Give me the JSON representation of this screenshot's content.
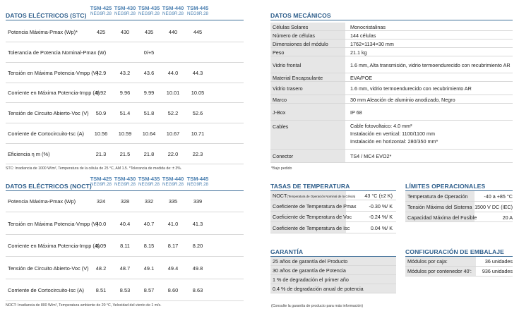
{
  "columns": [
    {
      "model": "TSM-425",
      "sub": "NEG9R.28"
    },
    {
      "model": "TSM-430",
      "sub": "NEG9R.28"
    },
    {
      "model": "TSM-435",
      "sub": "NEG9R.28"
    },
    {
      "model": "TSM-440",
      "sub": "NEG9R.28"
    },
    {
      "model": "TSM-445",
      "sub": "NEG9R.28"
    }
  ],
  "stc": {
    "title": "DATOS ELÉCTRICOS (STC)",
    "rows": [
      {
        "label": "Potencia Máxima-Pmax (Wp)*",
        "values": [
          "425",
          "430",
          "435",
          "440",
          "445"
        ]
      },
      {
        "label": "Tolerancia de Potencia Nominal-Pmax (W)",
        "span": "0/+5"
      },
      {
        "label": "Tensión en Máxima Potencia-Vmpp (V)",
        "values": [
          "42.9",
          "43.2",
          "43.6",
          "44.0",
          "44.3"
        ]
      },
      {
        "label": "Corriente en Máxima Potencia-Impp (A)",
        "values": [
          "9.92",
          "9.96",
          "9.99",
          "10.01",
          "10.05"
        ]
      },
      {
        "label": "Tensión de Circuito Abierto-Voc (V)",
        "values": [
          "50.9",
          "51.4",
          "51.8",
          "52.2",
          "52.6"
        ]
      },
      {
        "label": "Corriente de Cortocircuito-Isc (A)",
        "values": [
          "10.56",
          "10.59",
          "10.64",
          "10.67",
          "10.71"
        ]
      },
      {
        "label": "Eficiencia η m (%)",
        "values": [
          "21.3",
          "21.5",
          "21.8",
          "22.0",
          "22.3"
        ]
      }
    ],
    "note": "STC: Irradiancia de 1000 W/m², Temperatura de la célula de 25 °C, AM 1.5.    *Tolerancia de medida de: ± 3%."
  },
  "noct": {
    "title": "DATOS ELÉCTRICOS (NOCT)",
    "rows": [
      {
        "label": "Potencia Máxima-Pmax (Wp)",
        "values": [
          "324",
          "328",
          "332",
          "335",
          "339"
        ]
      },
      {
        "label": "Tensión en Máxima Potencia-Vmpp (V)",
        "values": [
          "40.0",
          "40.4",
          "40.7",
          "41.0",
          "41.3"
        ]
      },
      {
        "label": "Corriente en Máxima Potencia-Impp (A)",
        "values": [
          "8.09",
          "8.11",
          "8.15",
          "8.17",
          "8.20"
        ]
      },
      {
        "label": "Tensión de Circuito Abierto-Voc (V)",
        "values": [
          "48.2",
          "48.7",
          "49.1",
          "49.4",
          "49.8"
        ]
      },
      {
        "label": "Corriente de Cortocircuito-Isc (A)",
        "values": [
          "8.51",
          "8.53",
          "8.57",
          "8.60",
          "8.63"
        ]
      }
    ],
    "note": "NOCT: Irradiancia de 800 W/m², Temperatura ambiente de 20 °C, Velocidad del viento de 1 m/s."
  },
  "mech": {
    "title": "DATOS MECÁNICOS",
    "rows": [
      {
        "label": "Células Solares",
        "lines": [
          "Monocristalinas"
        ]
      },
      {
        "label": "Número de células",
        "lines": [
          "144 células"
        ]
      },
      {
        "label": "Dimensiones del módulo",
        "lines": [
          "1762×1134×30 mm"
        ]
      },
      {
        "label": "Peso",
        "lines": [
          "21.1 kg"
        ]
      },
      {
        "label": "Vidrio frontal",
        "lines": [
          "1.6 mm, Alta transmisión, vidrio termoendurecido con recubrimiento AR"
        ]
      },
      {
        "label": "Material Encapsulante",
        "lines": [
          "EVA/POE"
        ]
      },
      {
        "label": "Vidrio trasero",
        "lines": [
          "1.6 mm, vidrio termoendurecido con recubrimiento AR"
        ]
      },
      {
        "label": "Marco",
        "lines": [
          "30 mm Aleación de aluminio anodizado, Negro"
        ]
      },
      {
        "label": "J-Box",
        "lines": [
          "IP 68"
        ]
      },
      {
        "label": "Cables",
        "lines": [
          "Cable fotovoltaico: 4.0 mm²",
          "Instalación en vertical: 1100/1100 mm",
          "Instalación en horizontal: 280/350 mm*"
        ]
      },
      {
        "label": "Conector",
        "lines": [
          "TS4 / MC4 EVO2*"
        ]
      }
    ],
    "note": "*Bajo pedido"
  },
  "temp": {
    "title": "TASAS DE TEMPERATURA",
    "rows": [
      {
        "label": "NOCT",
        "small": "(Temperatura de Operación Nominal de la Célula)",
        "value": "43 °C (±2 K)"
      },
      {
        "label": "Coeficiente de Temperatura de Pmax",
        "value": "-0.30 %/ K"
      },
      {
        "label": "Coeficiente de Temperatura de Voc",
        "value": "-0.24 %/ K"
      },
      {
        "label": "Coeficiente de Temperatura de Isc",
        "value": "0.04 %/ K"
      }
    ]
  },
  "limits": {
    "title": "LÍMITES OPERACIONALES",
    "rows": [
      {
        "label": "Temperatura de Operación",
        "value": "-40 a +85 °C"
      },
      {
        "label": "Tensión Máxima del Sistema",
        "value": "1500 V DC (IEC)"
      },
      {
        "label": "Capacidad Máxima del Fusible",
        "value": "20 A"
      }
    ]
  },
  "warranty": {
    "title": "GARANTÍA",
    "rows": [
      "25 años de garantía del Producto",
      "30 años de garantía de Potencia",
      "1 % de degradación el primer año",
      "0.4 % de degradación anual de potencia"
    ],
    "note": "(Consulte la garantía de producto para más información)"
  },
  "packaging": {
    "title": "CONFIGURACIÓN DE EMBALAJE",
    "rows": [
      {
        "label": "Módulos por caja:",
        "value": "36 unidades"
      },
      {
        "label": "Módulos por contenedor 40':",
        "value": "936 unidades"
      }
    ]
  }
}
